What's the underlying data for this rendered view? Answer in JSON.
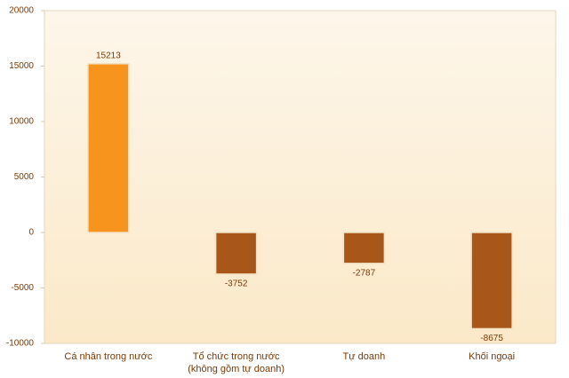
{
  "chart_data": {
    "type": "bar",
    "categories": [
      "Cá nhân trong nước",
      "Tổ chức trong nước\n(không gồm tự doanh)",
      "Tự doanh",
      "Khối ngoại"
    ],
    "values": [
      15213,
      -3752,
      -2787,
      -8675
    ],
    "colors": [
      "#f7941d",
      "#a8561a",
      "#a8561a",
      "#a8561a"
    ],
    "ylim": [
      -10000,
      20000
    ],
    "yticks": [
      -10000,
      -5000,
      0,
      5000,
      10000,
      15000,
      20000
    ],
    "grid": false
  }
}
